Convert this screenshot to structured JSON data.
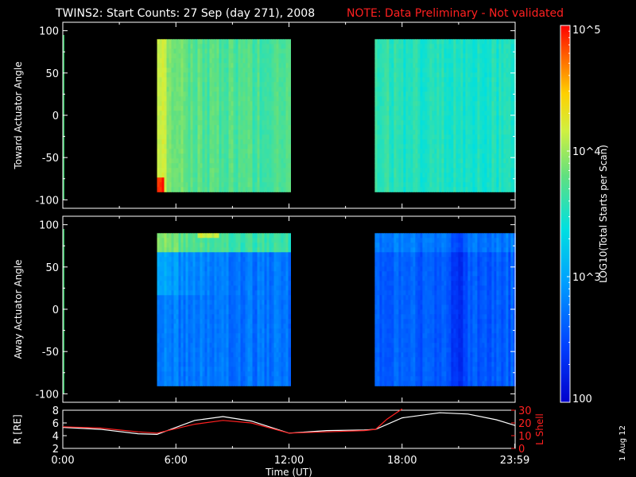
{
  "title": "TWINS2: Start Counts: 27 Sep (day 271), 2008",
  "note": "NOTE: Data Preliminary - Not validated",
  "date_stamp": "1 Aug 12",
  "colors": {
    "background": "#000000",
    "axis": "#ffffff",
    "note": "#ff2020",
    "r_line": "#ffffff",
    "l_line": "#ff2020"
  },
  "chart_data": [
    {
      "type": "heatmap",
      "panel": "top",
      "ylabel": "Toward Actuator Angle",
      "ylim": [
        -110,
        110
      ],
      "yticks": [
        100,
        50,
        0,
        -50,
        -100
      ],
      "xlim": [
        0,
        24
      ],
      "data_blocks": [
        {
          "x_start": 5.0,
          "x_end": 12.05,
          "y_start": -88,
          "y_end": 90,
          "typical_log10": 3.7,
          "notes": "higher counts near start and bottom edge"
        },
        {
          "x_start": 16.55,
          "x_end": 24.0,
          "y_start": -88,
          "y_end": 90,
          "typical_log10": 3.5
        }
      ]
    },
    {
      "type": "heatmap",
      "panel": "bottom",
      "ylabel": "Away Actuator Angle",
      "ylim": [
        -110,
        110
      ],
      "yticks": [
        100,
        50,
        0,
        -50,
        -100
      ],
      "xlim": [
        0,
        24
      ],
      "data_blocks": [
        {
          "x_start": 5.0,
          "x_end": 12.05,
          "y_start": -88,
          "y_end": 90,
          "typical_log10": 2.7,
          "notes": "high counts near +90"
        },
        {
          "x_start": 16.55,
          "x_end": 24.0,
          "y_start": -88,
          "y_end": 90,
          "typical_log10": 2.6
        }
      ]
    },
    {
      "type": "line",
      "panel": "orbit",
      "ylabel_left": "R [RE]",
      "ylabel_right": "L Shell",
      "ylim_left": [
        2,
        8
      ],
      "yticks_left": [
        8,
        6,
        4,
        2
      ],
      "ylim_right": [
        0,
        30
      ],
      "yticks_right": [
        30,
        20,
        10,
        0
      ],
      "xlabel": "Time (UT)",
      "xlim": [
        0,
        24
      ],
      "xtick_labels": [
        "0:00",
        "6:00",
        "12:00",
        "18:00",
        "23:59"
      ],
      "xtick_values": [
        0,
        6,
        12,
        18,
        23.98
      ],
      "series": [
        {
          "name": "R",
          "axis": "left",
          "x": [
            0,
            2,
            4,
            5,
            7,
            8.5,
            10,
            12,
            14,
            16,
            16.6,
            18,
            20,
            21.5,
            23,
            24
          ],
          "y": [
            5.3,
            5.0,
            4.3,
            4.2,
            6.4,
            7.0,
            6.3,
            4.4,
            4.8,
            4.9,
            5.0,
            6.8,
            7.6,
            7.4,
            6.5,
            5.6
          ]
        },
        {
          "name": "L",
          "axis": "right",
          "x": [
            0,
            2,
            4,
            5,
            7,
            8.5,
            10,
            12,
            14,
            16,
            16.6,
            17.2,
            18
          ],
          "y": [
            17,
            16,
            13,
            12,
            19,
            22,
            20,
            12,
            13,
            14,
            15,
            23,
            31
          ]
        }
      ]
    },
    {
      "type": "colorbar",
      "label": "LOG10(Total Starts per Scan)",
      "scale": "log",
      "range": [
        100,
        100000
      ],
      "tick_labels": [
        "10^5",
        "10^4",
        "10^3",
        "100"
      ],
      "tick_values": [
        100000,
        10000,
        1000,
        100
      ]
    }
  ]
}
